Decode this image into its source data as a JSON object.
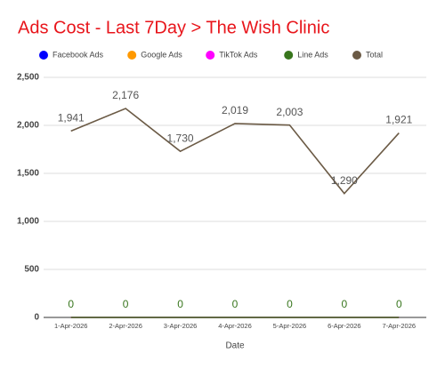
{
  "chart_data": {
    "type": "line",
    "title": "Ads Cost - Last 7Day > The Wish Clinic",
    "x_label": "Date",
    "categories": [
      "1-Apr-2026",
      "2-Apr-2026",
      "3-Apr-2026",
      "4-Apr-2026",
      "5-Apr-2026",
      "6-Apr-2026",
      "7-Apr-2026"
    ],
    "series": [
      {
        "name": "Facebook Ads",
        "color": "#0000ff",
        "values": [
          0,
          0,
          0,
          0,
          0,
          0,
          0
        ]
      },
      {
        "name": "Google Ads",
        "color": "#ff9900",
        "values": [
          0,
          0,
          0,
          0,
          0,
          0,
          0
        ]
      },
      {
        "name": "TikTok Ads",
        "color": "#ff00ff",
        "values": [
          0,
          0,
          0,
          0,
          0,
          0,
          0
        ]
      },
      {
        "name": "Line Ads",
        "color": "#38761d",
        "values": [
          0,
          0,
          0,
          0,
          0,
          0,
          0
        ],
        "data_labels": true
      },
      {
        "name": "Total",
        "color": "#6b5a45",
        "values": [
          1941,
          2176,
          1730,
          2019,
          2003,
          1290,
          1921
        ],
        "value_labels": [
          "1,941",
          "2,176",
          "1,730",
          "2,019",
          "2,003",
          "1,290",
          "1,921"
        ],
        "data_labels": true
      }
    ],
    "ylim": [
      0,
      2500
    ],
    "yticks": [
      0,
      500,
      {
        "value": 1000,
        "label": "1,000"
      },
      {
        "value": 1500,
        "label": "1,500"
      },
      {
        "value": 2000,
        "label": "2,000"
      },
      {
        "value": 2500,
        "label": "2,500"
      }
    ],
    "grid": true,
    "legend": "top"
  }
}
